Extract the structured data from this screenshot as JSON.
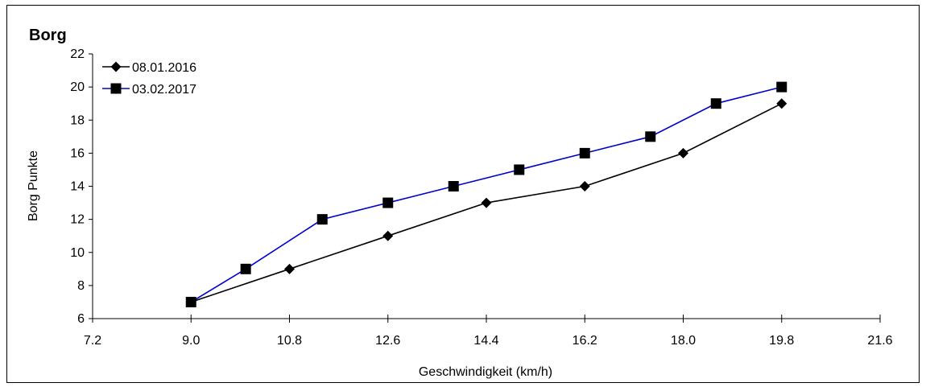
{
  "chart_data": {
    "type": "line",
    "title": "Borg",
    "xlabel": "Geschwindigkeit (km/h)",
    "ylabel": "Borg Punkte",
    "xlim": [
      7.2,
      21.6
    ],
    "ylim": [
      6,
      22
    ],
    "x_ticks": [
      "7.2",
      "9.0",
      "10.8",
      "12.6",
      "14.4",
      "16.2",
      "18.0",
      "19.8",
      "21.6"
    ],
    "y_ticks": [
      "6",
      "8",
      "10",
      "12",
      "14",
      "16",
      "18",
      "20",
      "22"
    ],
    "grid": false,
    "legend_position": "top-left",
    "series": [
      {
        "name": "08.01.2016",
        "color": "#000000",
        "marker": "diamond",
        "x": [
          9.0,
          10.8,
          12.6,
          14.4,
          16.2,
          18.0,
          19.8
        ],
        "y": [
          7,
          9,
          11,
          13,
          14,
          16,
          19
        ]
      },
      {
        "name": "03.02.2017",
        "color": "#0000cc",
        "marker": "square",
        "x": [
          9.0,
          10.0,
          11.4,
          12.6,
          13.8,
          15.0,
          16.2,
          17.4,
          18.6,
          19.8
        ],
        "y": [
          7,
          9,
          12,
          13,
          14,
          15,
          16,
          17,
          19,
          20
        ]
      }
    ]
  }
}
